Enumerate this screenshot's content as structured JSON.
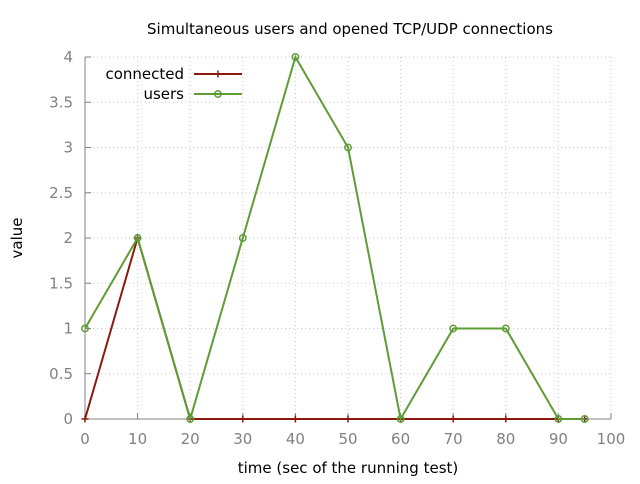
{
  "chart_data": {
    "type": "line",
    "title": "Simultaneous users and opened TCP/UDP connections",
    "xlabel": "time (sec of the running test)",
    "ylabel": "value",
    "xlim": [
      0,
      100
    ],
    "ylim": [
      0,
      4
    ],
    "x_ticks": [
      "0",
      "10",
      "20",
      "30",
      "40",
      "50",
      "60",
      "70",
      "80",
      "90",
      "100"
    ],
    "y_ticks": [
      "0",
      "0.5",
      "1",
      "1.5",
      "2",
      "2.5",
      "3",
      "3.5",
      "4"
    ],
    "grid": true,
    "legend_position": "top-left",
    "series": [
      {
        "name": "connected",
        "color": "#8b1a0e",
        "marker": "plus",
        "x": [
          0,
          10,
          20,
          30,
          40,
          50,
          60,
          70,
          80,
          90,
          95
        ],
        "y": [
          0,
          2,
          0,
          0,
          0,
          0,
          0,
          0,
          0,
          0,
          0
        ]
      },
      {
        "name": "users",
        "color": "#5e9c36",
        "marker": "circle",
        "x": [
          0,
          10,
          20,
          30,
          40,
          50,
          60,
          70,
          80,
          90,
          95
        ],
        "y": [
          1,
          2,
          0,
          2,
          4,
          3,
          0,
          1,
          1,
          0,
          0
        ]
      }
    ]
  }
}
